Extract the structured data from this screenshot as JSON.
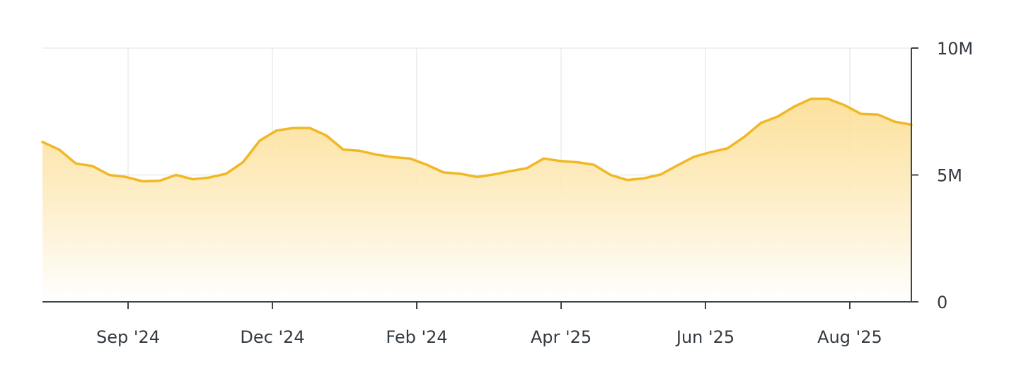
{
  "chart_data": {
    "type": "area",
    "x_tick_labels": [
      "Sep '24",
      "Dec '24",
      "Feb '24",
      "Apr '25",
      "Jun '25",
      "Aug '25"
    ],
    "y_tick_labels": [
      "10M",
      "5M",
      "0"
    ],
    "y_ticks": [
      10000000,
      5000000,
      0
    ],
    "ylim": [
      0,
      10000000
    ],
    "y_axis_position": "right",
    "grid": true,
    "series": [
      {
        "values": [
          6.3,
          6.0,
          5.45,
          5.35,
          5.0,
          4.92,
          4.75,
          4.77,
          5.0,
          4.83,
          4.9,
          5.05,
          5.5,
          6.35,
          6.75,
          6.85,
          6.85,
          6.55,
          6.0,
          5.95,
          5.8,
          5.7,
          5.65,
          5.4,
          5.1,
          5.05,
          4.92,
          5.02,
          5.15,
          5.27,
          5.65,
          5.55,
          5.5,
          5.4,
          5.0,
          4.8,
          4.87,
          5.02,
          5.38,
          5.72,
          5.9,
          6.05,
          6.5,
          7.05,
          7.3,
          7.7,
          8.0,
          8.0,
          7.75,
          7.4,
          7.38,
          7.1,
          6.98
        ]
      }
    ],
    "colors": {
      "line": "#f0b824",
      "fill_top": "#fcdc8c",
      "fill_bottom": "#ffffff"
    }
  }
}
